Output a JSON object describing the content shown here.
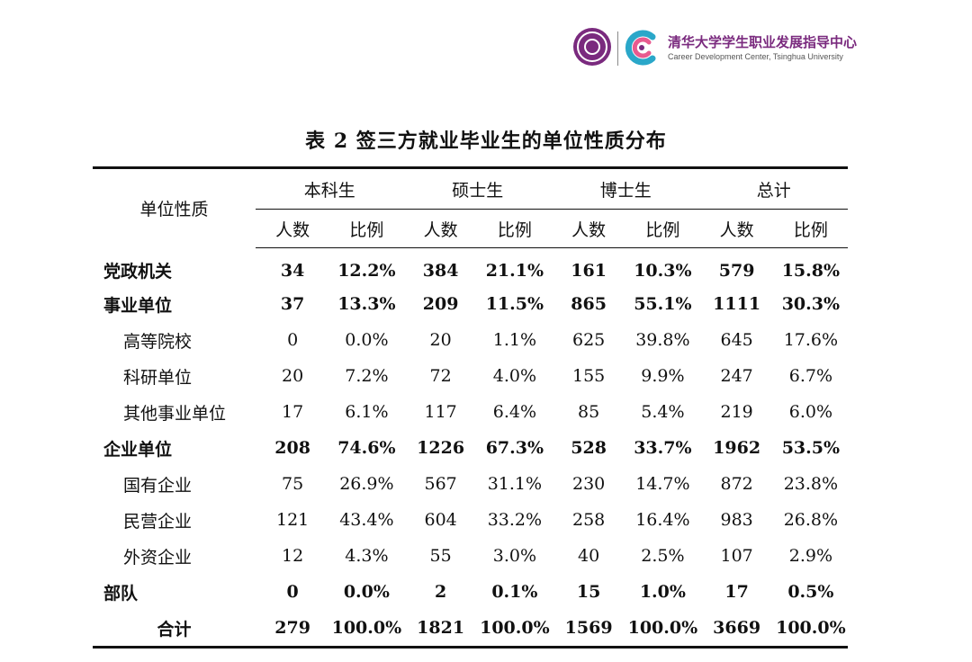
{
  "header": {
    "brand_cn": "清华大学学生职业发展指导中心",
    "brand_en": "Career Development Center, Tsinghua University",
    "seal_icon": "tsinghua-seal-icon",
    "logo_icon": "career-center-logo-icon",
    "brand_colors": [
      "#7a2a7e",
      "#2aa7c9",
      "#e85a8f"
    ]
  },
  "title": "表 2 签三方就业毕业生的单位性质分布",
  "table": {
    "row_header": "单位性质",
    "groups": [
      "本科生",
      "硕士生",
      "博士生",
      "总计"
    ],
    "subcols": [
      "人数",
      "比例"
    ],
    "rows": [
      {
        "label": "党政机关",
        "bold": true,
        "sub": false,
        "cells": [
          "34",
          "12.2%",
          "384",
          "21.1%",
          "161",
          "10.3%",
          "579",
          "15.8%"
        ]
      },
      {
        "label": "事业单位",
        "bold": true,
        "sub": false,
        "cells": [
          "37",
          "13.3%",
          "209",
          "11.5%",
          "865",
          "55.1%",
          "1111",
          "30.3%"
        ]
      },
      {
        "label": "高等院校",
        "bold": false,
        "sub": true,
        "cells": [
          "0",
          "0.0%",
          "20",
          "1.1%",
          "625",
          "39.8%",
          "645",
          "17.6%"
        ]
      },
      {
        "label": "科研单位",
        "bold": false,
        "sub": true,
        "cells": [
          "20",
          "7.2%",
          "72",
          "4.0%",
          "155",
          "9.9%",
          "247",
          "6.7%"
        ]
      },
      {
        "label": "其他事业单位",
        "bold": false,
        "sub": true,
        "cells": [
          "17",
          "6.1%",
          "117",
          "6.4%",
          "85",
          "5.4%",
          "219",
          "6.0%"
        ]
      },
      {
        "label": "企业单位",
        "bold": true,
        "sub": false,
        "cells": [
          "208",
          "74.6%",
          "1226",
          "67.3%",
          "528",
          "33.7%",
          "1962",
          "53.5%"
        ]
      },
      {
        "label": "国有企业",
        "bold": false,
        "sub": true,
        "cells": [
          "75",
          "26.9%",
          "567",
          "31.1%",
          "230",
          "14.7%",
          "872",
          "23.8%"
        ]
      },
      {
        "label": "民营企业",
        "bold": false,
        "sub": true,
        "cells": [
          "121",
          "43.4%",
          "604",
          "33.2%",
          "258",
          "16.4%",
          "983",
          "26.8%"
        ]
      },
      {
        "label": "外资企业",
        "bold": false,
        "sub": true,
        "cells": [
          "12",
          "4.3%",
          "55",
          "3.0%",
          "40",
          "2.5%",
          "107",
          "2.9%"
        ]
      },
      {
        "label": "部队",
        "bold": true,
        "sub": false,
        "cells": [
          "0",
          "0.0%",
          "2",
          "0.1%",
          "15",
          "1.0%",
          "17",
          "0.5%"
        ]
      },
      {
        "label": "合计",
        "bold": true,
        "sub": false,
        "total": true,
        "cells": [
          "279",
          "100.0%",
          "1821",
          "100.0%",
          "1569",
          "100.0%",
          "3669",
          "100.0%"
        ]
      }
    ]
  }
}
